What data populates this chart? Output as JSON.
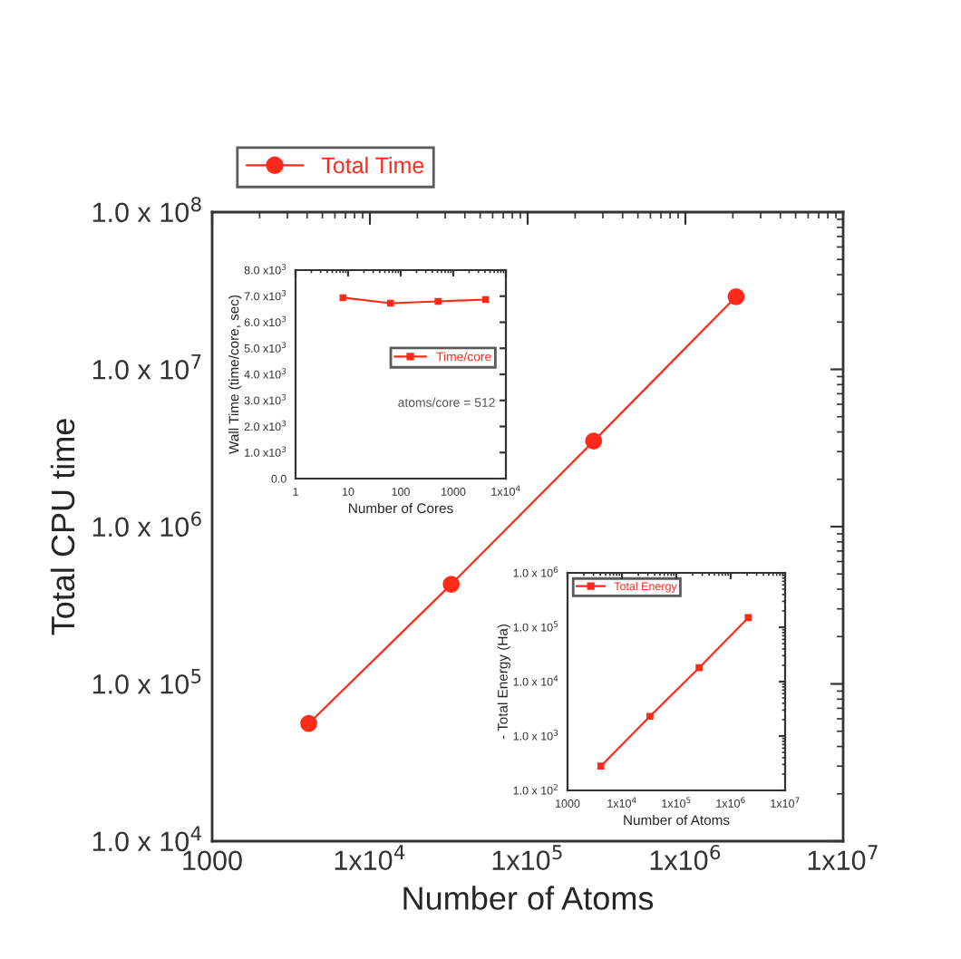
{
  "chart_data": [
    {
      "type": "line",
      "xlabel": "Number of Atoms",
      "ylabel": "Total CPU time",
      "log": "xy",
      "legend": "top left",
      "marker": "circle",
      "grid": false,
      "x": [
        4096,
        32768,
        262144,
        2097152
      ],
      "series": [
        {
          "name": "Total Time",
          "color": "#ff2a1a",
          "values": [
            56000,
            430000,
            3500000,
            29000000
          ]
        }
      ],
      "xlim": [
        1000,
        10000000
      ],
      "xticks": [
        1000,
        {
          "value": 10000,
          "label": "1x10$^{4}$"
        },
        {
          "value": 100000,
          "label": "1x10$^{5}$"
        },
        {
          "value": 1000000,
          "label": "1x10$^{6}$"
        },
        {
          "value": 10000000,
          "label": "1x10$^{7}$"
        }
      ],
      "ylim": [
        10000,
        100000000
      ],
      "yticks": [
        {
          "value": 10000,
          "label": "1.0 x 10$^{4}$"
        },
        {
          "value": 100000,
          "label": "1.0 x 10$^{5}$"
        },
        {
          "value": 1000000,
          "label": "1.0 x 10$^{6}$"
        },
        {
          "value": 10000000,
          "label": "1.0 x 10$^{7}$"
        },
        {
          "value": 100000000,
          "label": "1.0 x 10$^{8}$"
        }
      ]
    },
    {
      "type": "line",
      "xlabel": "Number of Cores",
      "ylabel": "Wall Time (time/core, sec)",
      "log": "x",
      "legend": "right",
      "marker": "square",
      "grid": false,
      "annotations": [
        "atoms/core = 512"
      ],
      "x": [
        8,
        64,
        512,
        4096
      ],
      "series": [
        {
          "name": "Time/core",
          "color": "#ff2a1a",
          "values": [
            6940,
            6730,
            6800,
            6870
          ]
        }
      ],
      "xlim": [
        1,
        10000
      ],
      "xticks": [
        1,
        10,
        100,
        1000,
        {
          "value": 10000,
          "label": "1x10$^{4}$"
        }
      ],
      "ylim": [
        0,
        8000
      ],
      "yticks": [
        {
          "value": 0,
          "label": "0.0"
        },
        {
          "value": 1000,
          "label": "1.0 x10$^{3}$"
        },
        {
          "value": 2000,
          "label": "2.0 x10$^{3}$"
        },
        {
          "value": 3000,
          "label": "3.0 x10$^{3}$"
        },
        {
          "value": 4000,
          "label": "4.0 x10$^{3}$"
        },
        {
          "value": 5000,
          "label": "5.0 x10$^{3}$"
        },
        {
          "value": 6000,
          "label": "6.0 x10$^{3}$"
        },
        {
          "value": 7000,
          "label": "7.0 x10$^{3}$"
        },
        {
          "value": 8000,
          "label": "8.0 x10$^{3}$"
        }
      ]
    },
    {
      "type": "line",
      "xlabel": "Number of Atoms",
      "ylabel": "- Total Energy (Ha)",
      "log": "xy",
      "legend": "top left",
      "marker": "square",
      "grid": false,
      "x": [
        4096,
        32768,
        262144,
        2097152
      ],
      "series": [
        {
          "name": "Total Energy",
          "color": "#ff2a1a",
          "values": [
            280,
            2300,
            18000,
            150000
          ]
        }
      ],
      "xlim": [
        1000,
        10000000
      ],
      "xticks": [
        1000,
        {
          "value": 10000,
          "label": "1x10$^{4}$"
        },
        {
          "value": 100000,
          "label": "1x10$^{5}$"
        },
        {
          "value": 1000000,
          "label": "1x10$^{6}$"
        },
        {
          "value": 10000000,
          "label": "1x10$^{7}$"
        }
      ],
      "ylim": [
        100,
        1000000
      ],
      "yticks": [
        {
          "value": 100,
          "label": "1.0 x 10$^{2}$"
        },
        {
          "value": 1000,
          "label": "1.0 x 10$^{3}$"
        },
        {
          "value": 10000,
          "label": "1.0 x 10$^{4}$"
        },
        {
          "value": 100000,
          "label": "1.0 x 10$^{5}$"
        },
        {
          "value": 1000000,
          "label": "1.0 x 10$^{6}$"
        }
      ]
    }
  ]
}
